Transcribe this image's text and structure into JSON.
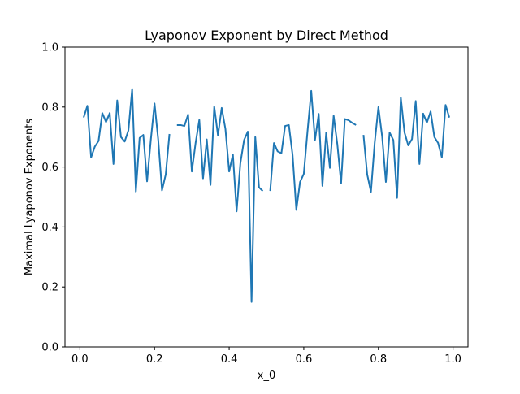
{
  "chart_data": {
    "type": "line",
    "title": "Lyaponov Exponent by Direct Method",
    "xlabel": "x_0",
    "ylabel": "Maximal Lyaponov Exponents",
    "xlim": [
      -0.04,
      1.04
    ],
    "ylim": [
      0.0,
      1.0
    ],
    "xticks": [
      0.0,
      0.2,
      0.4,
      0.6,
      0.8,
      1.0
    ],
    "xtick_labels": [
      "0.0",
      "0.2",
      "0.4",
      "0.6",
      "0.8",
      "1.0"
    ],
    "yticks": [
      0.0,
      0.2,
      0.4,
      0.6,
      0.8,
      1.0
    ],
    "ytick_labels": [
      "0.0",
      "0.2",
      "0.4",
      "0.6",
      "0.8",
      "1.0"
    ],
    "grid": false,
    "legend": false,
    "series": [
      {
        "color": "#1f77b4",
        "segments": [
          {
            "x": [
              0.01,
              0.02,
              0.03,
              0.04,
              0.05,
              0.06,
              0.07,
              0.08,
              0.09,
              0.1,
              0.11,
              0.12,
              0.13,
              0.14,
              0.15,
              0.16,
              0.17,
              0.18,
              0.19,
              0.2,
              0.21,
              0.22,
              0.23,
              0.24
            ],
            "y": [
              0.765,
              0.804,
              0.632,
              0.668,
              0.687,
              0.78,
              0.75,
              0.78,
              0.61,
              0.822,
              0.7,
              0.685,
              0.722,
              0.86,
              0.518,
              0.697,
              0.707,
              0.552,
              0.69,
              0.812,
              0.69,
              0.522,
              0.575,
              0.71
            ]
          },
          {
            "x": [
              0.26,
              0.27,
              0.28,
              0.29,
              0.3,
              0.31,
              0.32,
              0.33,
              0.34,
              0.35,
              0.36,
              0.37,
              0.38,
              0.39,
              0.4,
              0.41,
              0.42,
              0.43,
              0.44,
              0.45,
              0.46,
              0.47,
              0.48,
              0.49
            ],
            "y": [
              0.74,
              0.74,
              0.737,
              0.775,
              0.585,
              0.68,
              0.757,
              0.562,
              0.692,
              0.54,
              0.802,
              0.705,
              0.797,
              0.727,
              0.585,
              0.642,
              0.452,
              0.612,
              0.69,
              0.718,
              0.15,
              0.7,
              0.532,
              0.52
            ]
          },
          {
            "x": [
              0.51,
              0.52,
              0.53,
              0.54,
              0.55,
              0.56,
              0.57,
              0.58,
              0.59,
              0.6,
              0.61,
              0.62,
              0.63,
              0.64,
              0.65,
              0.66,
              0.67,
              0.68,
              0.69,
              0.7,
              0.71,
              0.72,
              0.73,
              0.74
            ],
            "y": [
              0.52,
              0.68,
              0.652,
              0.646,
              0.737,
              0.74,
              0.64,
              0.457,
              0.55,
              0.577,
              0.72,
              0.854,
              0.69,
              0.777,
              0.537,
              0.715,
              0.597,
              0.771,
              0.675,
              0.545,
              0.76,
              0.756,
              0.747,
              0.74
            ]
          },
          {
            "x": [
              0.76,
              0.77,
              0.78,
              0.79,
              0.8,
              0.81,
              0.82,
              0.83,
              0.84,
              0.85,
              0.86,
              0.87,
              0.88,
              0.89,
              0.9,
              0.91,
              0.92,
              0.93,
              0.94,
              0.95,
              0.96,
              0.97,
              0.98,
              0.99
            ],
            "y": [
              0.707,
              0.575,
              0.517,
              0.68,
              0.8,
              0.702,
              0.55,
              0.715,
              0.69,
              0.497,
              0.832,
              0.715,
              0.672,
              0.693,
              0.82,
              0.61,
              0.778,
              0.748,
              0.785,
              0.7,
              0.68,
              0.632,
              0.807,
              0.765
            ]
          }
        ]
      }
    ]
  }
}
